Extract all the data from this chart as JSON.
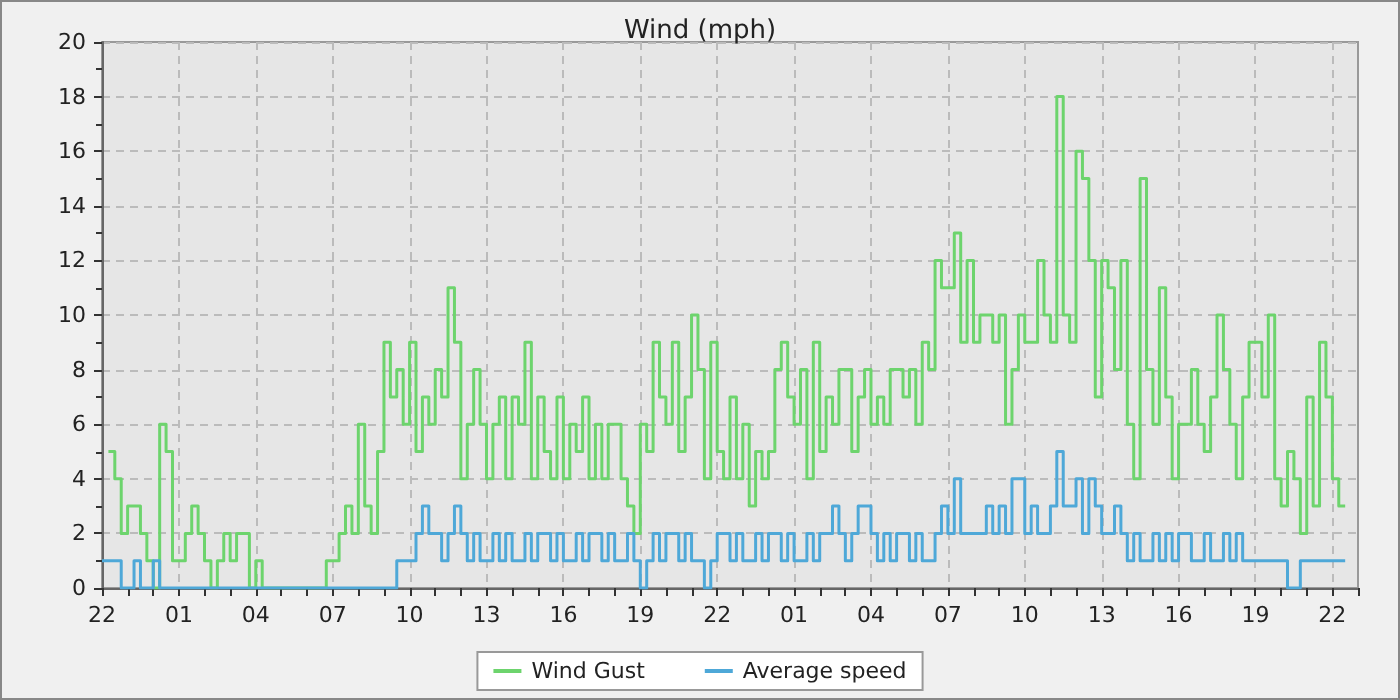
{
  "chart_data": {
    "type": "step",
    "title": "Wind (mph)",
    "categories": [
      "22",
      null,
      null,
      null,
      null,
      null,
      null,
      null,
      null,
      null,
      null,
      null,
      "01",
      null,
      null,
      null,
      null,
      null,
      null,
      null,
      null,
      null,
      null,
      null,
      "04",
      null,
      null,
      null,
      null,
      null,
      null,
      null,
      null,
      null,
      null,
      null,
      "07",
      null,
      null,
      null,
      null,
      null,
      null,
      null,
      null,
      null,
      null,
      null,
      "10",
      null,
      null,
      null,
      null,
      null,
      null,
      null,
      null,
      null,
      null,
      null,
      "13",
      null,
      null,
      null,
      null,
      null,
      null,
      null,
      null,
      null,
      null,
      null,
      "16",
      null,
      null,
      null,
      null,
      null,
      null,
      null,
      null,
      null,
      null,
      null,
      "19",
      null,
      null,
      null,
      null,
      null,
      null,
      null,
      null,
      null,
      null,
      null,
      "22",
      null,
      null,
      null,
      null,
      null,
      null,
      null,
      null,
      null,
      null,
      null,
      "01",
      null,
      null,
      null,
      null,
      null,
      null,
      null,
      null,
      null,
      null,
      null,
      "04",
      null,
      null,
      null,
      null,
      null,
      null,
      null,
      null,
      null,
      null,
      null,
      "07",
      null,
      null,
      null,
      null,
      null,
      null,
      null,
      null,
      null,
      null,
      null,
      "10",
      null,
      null,
      null,
      null,
      null,
      null,
      null,
      null,
      null,
      null,
      null,
      "13",
      null,
      null,
      null,
      null,
      null,
      null,
      null,
      null,
      null,
      null,
      null,
      "16",
      null,
      null,
      null,
      null,
      null,
      null,
      null,
      null,
      null,
      null,
      null,
      "19",
      null,
      null,
      null,
      null,
      null,
      null,
      null,
      null,
      null,
      null,
      null,
      "22",
      null,
      null,
      null,
      null
    ],
    "ylim": [
      0,
      20
    ],
    "yticks": [
      0,
      2,
      4,
      6,
      8,
      10,
      12,
      14,
      16,
      18,
      20
    ],
    "grid": true,
    "legend": "bottom",
    "marker": "none",
    "line_style": "solid",
    "series": [
      {
        "name": "Wind Gust",
        "color": "#6dd46d",
        "values": [
          null,
          5,
          4,
          2,
          3,
          3,
          2,
          1,
          0,
          6,
          5,
          1,
          1,
          2,
          3,
          2,
          1,
          0,
          1,
          2,
          1,
          2,
          2,
          0,
          1,
          0,
          0,
          0,
          0,
          0,
          0,
          0,
          0,
          0,
          0,
          1,
          1,
          2,
          3,
          2,
          6,
          3,
          2,
          5,
          9,
          7,
          8,
          6,
          9,
          5,
          7,
          6,
          8,
          7,
          11,
          9,
          4,
          6,
          8,
          6,
          4,
          6,
          7,
          4,
          7,
          6,
          9,
          4,
          7,
          5,
          4,
          7,
          4,
          6,
          5,
          7,
          4,
          6,
          4,
          6,
          6,
          4,
          3,
          2,
          6,
          5,
          9,
          7,
          6,
          9,
          5,
          7,
          10,
          8,
          4,
          9,
          5,
          4,
          7,
          4,
          6,
          3,
          5,
          4,
          5,
          8,
          9,
          7,
          6,
          8,
          4,
          9,
          5,
          7,
          6,
          8,
          8,
          5,
          7,
          8,
          6,
          7,
          6,
          8,
          8,
          7,
          8,
          6,
          9,
          8,
          12,
          11,
          11,
          13,
          9,
          12,
          9,
          10,
          10,
          9,
          10,
          6,
          8,
          10,
          9,
          9,
          12,
          10,
          9,
          18,
          10,
          9,
          16,
          15,
          12,
          7,
          12,
          11,
          8,
          12,
          6,
          4,
          15,
          8,
          6,
          11,
          7,
          4,
          6,
          6,
          8,
          6,
          5,
          7,
          10,
          8,
          6,
          4,
          7,
          9,
          9,
          7,
          10,
          4,
          3,
          5,
          4,
          2,
          7,
          3,
          9,
          7,
          4,
          3,
          3,
          null,
          null
        ]
      },
      {
        "name": "Average speed",
        "color": "#4ea8d8",
        "values": [
          1,
          1,
          1,
          0,
          0,
          1,
          0,
          0,
          1,
          0,
          0,
          0,
          0,
          0,
          0,
          0,
          0,
          0,
          0,
          0,
          0,
          0,
          0,
          0,
          0,
          0,
          0,
          0,
          0,
          0,
          0,
          0,
          0,
          0,
          0,
          0,
          0,
          0,
          0,
          0,
          0,
          0,
          0,
          0,
          0,
          0,
          1,
          1,
          1,
          2,
          3,
          2,
          2,
          1,
          2,
          3,
          2,
          1,
          2,
          1,
          1,
          2,
          1,
          2,
          1,
          1,
          2,
          1,
          2,
          2,
          1,
          2,
          1,
          1,
          2,
          1,
          2,
          2,
          1,
          2,
          1,
          1,
          2,
          1,
          0,
          1,
          2,
          1,
          2,
          2,
          1,
          2,
          1,
          1,
          0,
          1,
          2,
          2,
          1,
          2,
          1,
          1,
          2,
          1,
          2,
          2,
          1,
          2,
          1,
          1,
          2,
          1,
          2,
          2,
          3,
          2,
          1,
          2,
          3,
          3,
          2,
          1,
          2,
          1,
          2,
          2,
          1,
          2,
          1,
          1,
          2,
          3,
          2,
          4,
          2,
          2,
          2,
          2,
          3,
          2,
          3,
          2,
          4,
          4,
          2,
          3,
          2,
          2,
          3,
          5,
          3,
          3,
          4,
          2,
          4,
          3,
          2,
          2,
          3,
          2,
          1,
          2,
          1,
          1,
          2,
          1,
          2,
          1,
          2,
          2,
          1,
          1,
          2,
          1,
          1,
          2,
          1,
          2,
          1,
          1,
          1,
          1,
          1,
          1,
          1,
          0,
          0,
          1,
          1,
          1,
          1,
          1,
          1,
          1,
          1,
          null,
          null
        ]
      }
    ]
  }
}
